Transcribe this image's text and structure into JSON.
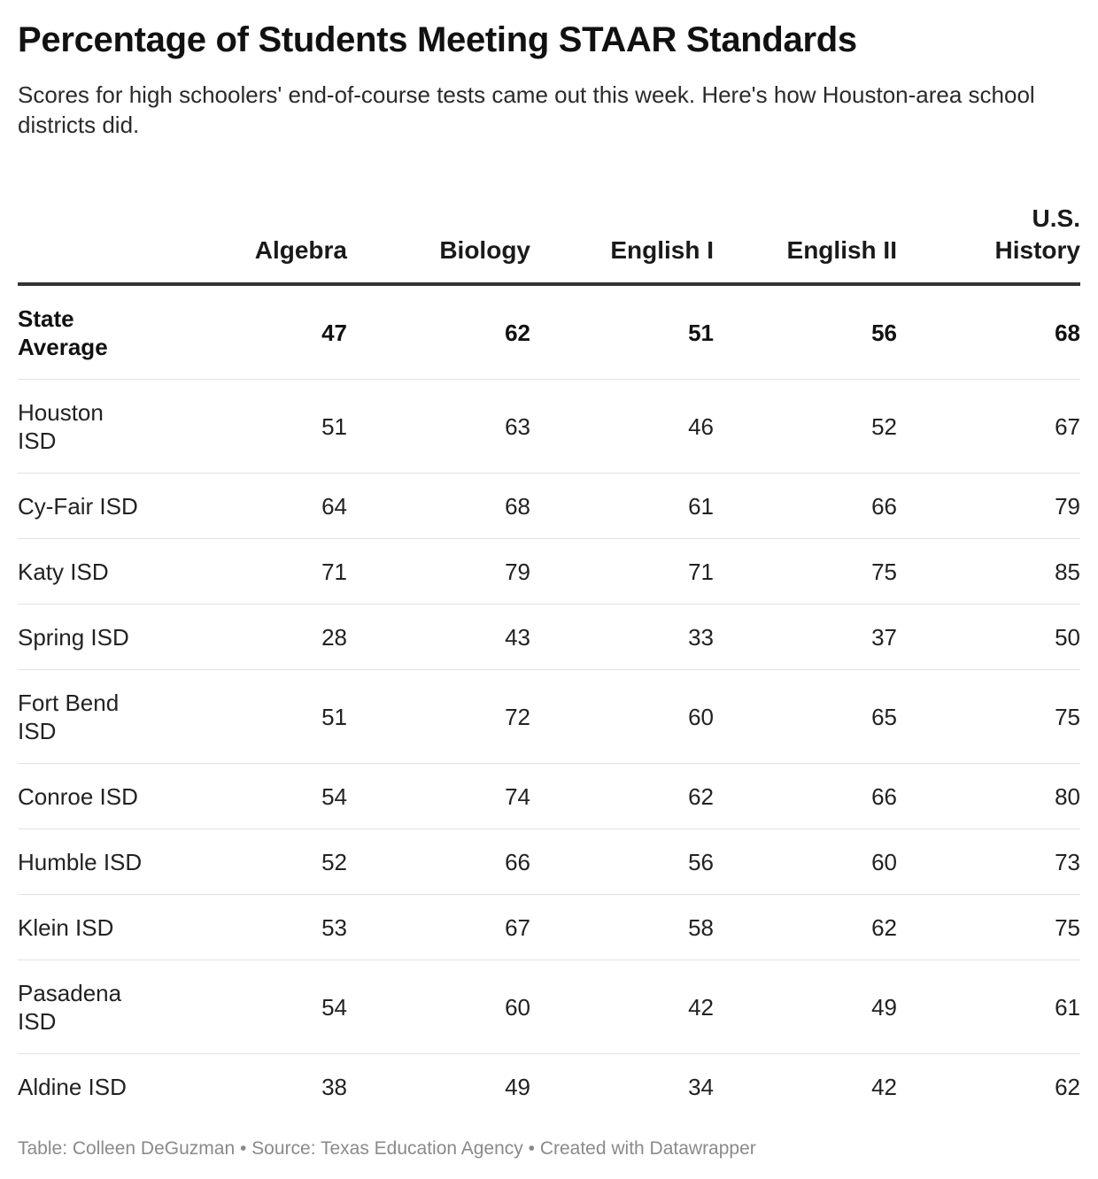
{
  "title": "Percentage of Students Meeting STAAR Standards",
  "subtitle": "Scores for high schoolers' end-of-course tests came out this week. Here's how Houston-area school districts did.",
  "footer": "Table: Colleen DeGuzman • Source: Texas Education Agency • Created with Datawrapper",
  "chart_data": {
    "type": "table",
    "title": "Percentage of Students Meeting STAAR Standards",
    "columns": [
      "",
      "Algebra",
      "Biology",
      "English I",
      "English II",
      "U.S. History"
    ],
    "rows": [
      {
        "label": "State Average",
        "values": [
          47,
          62,
          51,
          56,
          68
        ],
        "bold": true
      },
      {
        "label": "Houston ISD",
        "values": [
          51,
          63,
          46,
          52,
          67
        ]
      },
      {
        "label": "Cy-Fair ISD",
        "values": [
          64,
          68,
          61,
          66,
          79
        ]
      },
      {
        "label": "Katy ISD",
        "values": [
          71,
          79,
          71,
          75,
          85
        ]
      },
      {
        "label": "Spring ISD",
        "values": [
          28,
          43,
          33,
          37,
          50
        ]
      },
      {
        "label": "Fort Bend ISD",
        "values": [
          51,
          72,
          60,
          65,
          75
        ]
      },
      {
        "label": "Conroe ISD",
        "values": [
          54,
          74,
          62,
          66,
          80
        ]
      },
      {
        "label": "Humble ISD",
        "values": [
          52,
          66,
          56,
          60,
          73
        ]
      },
      {
        "label": "Klein ISD",
        "values": [
          53,
          67,
          58,
          62,
          75
        ]
      },
      {
        "label": "Pasadena ISD",
        "values": [
          54,
          60,
          42,
          49,
          61
        ]
      },
      {
        "label": "Aldine ISD",
        "values": [
          38,
          49,
          34,
          42,
          62
        ]
      }
    ]
  }
}
